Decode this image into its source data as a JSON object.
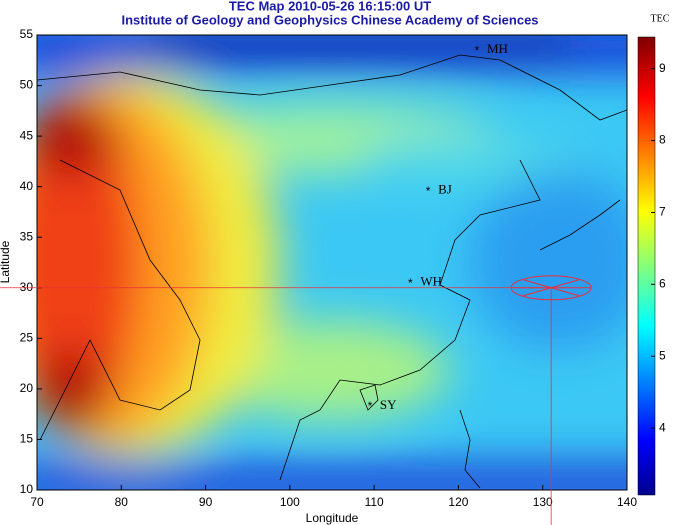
{
  "chart_data": {
    "type": "map",
    "title": "TEC Map 2010-05-26 16:15:00 UT",
    "subtitle": "Institute of Geology and Geophysics Chinese Academy of Sciences",
    "xlabel": "Longitude",
    "ylabel": "Latitude",
    "xlim": [
      70,
      140
    ],
    "ylim": [
      10,
      55
    ],
    "xticks": [
      70,
      80,
      90,
      100,
      110,
      120,
      130,
      140
    ],
    "yticks": [
      10,
      15,
      20,
      25,
      30,
      35,
      40,
      45,
      50,
      55
    ],
    "stations": [
      {
        "name": "MH",
        "x": 122.2,
        "y": 53.5
      },
      {
        "name": "BJ",
        "x": 116.4,
        "y": 39.6
      },
      {
        "name": "WH",
        "x": 114.3,
        "y": 30.5
      },
      {
        "name": "SY",
        "x": 109.5,
        "y": 18.3
      }
    ],
    "crosshair": {
      "x": 131,
      "y": 30,
      "color": "#e8303a"
    },
    "colorbar": {
      "label": "TEC",
      "lim": [
        3.07,
        9.44
      ],
      "ticks": [
        4,
        5,
        6,
        7,
        8,
        9
      ]
    }
  }
}
